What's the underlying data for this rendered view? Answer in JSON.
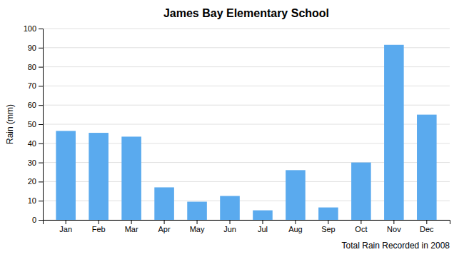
{
  "chart_data": {
    "type": "bar",
    "title": "James Bay Elementary School",
    "xlabel": "Total Rain Recorded in 2008",
    "ylabel": "Rain (mm)",
    "categories": [
      "Jan",
      "Feb",
      "Mar",
      "Apr",
      "May",
      "Jun",
      "Jul",
      "Aug",
      "Sep",
      "Oct",
      "Nov",
      "Dec"
    ],
    "values": [
      46.5,
      45.5,
      43.5,
      17,
      9.5,
      12.5,
      5,
      26,
      6.5,
      30,
      91.5,
      55
    ],
    "color": "#5aaaee",
    "ylim": [
      0,
      100
    ],
    "yticks": [
      0,
      10,
      20,
      30,
      40,
      50,
      60,
      70,
      80,
      90,
      100
    ],
    "grid": true
  }
}
